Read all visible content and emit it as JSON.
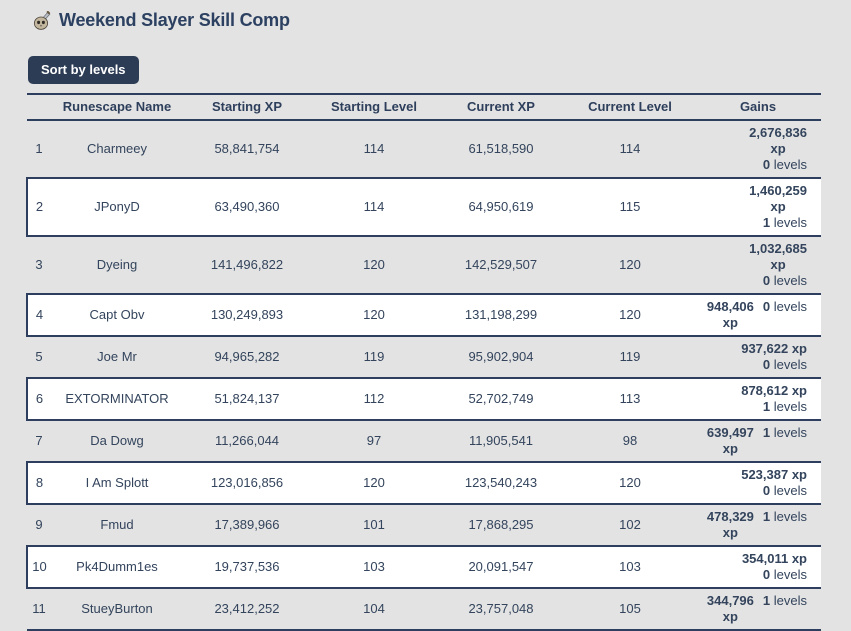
{
  "page": {
    "title": "Weekend Slayer Skill Comp",
    "icon": "slayer-skill-icon",
    "sort_button_label": "Sort by levels"
  },
  "colors": {
    "page_background": "#e3e3e3",
    "row_alt_background": "#ffffff",
    "text_navy": "#33445c",
    "border_navy": "#2d3e5f",
    "button_background": "#2d3c55",
    "button_text": "#ffffff"
  },
  "table": {
    "headers": {
      "rank": "",
      "name": "Runescape Name",
      "starting_xp": "Starting XP",
      "starting_level": "Starting Level",
      "current_xp": "Current XP",
      "current_level": "Current Level",
      "gains": "Gains"
    },
    "rows": [
      {
        "rank": "1",
        "name": "Charmeey",
        "starting_xp": "58,841,754",
        "starting_level": "114",
        "current_xp": "61,518,590",
        "current_level": "114",
        "gains_xp": "2,676,836\nxp",
        "gains_levels_value": "0",
        "gains_levels_unit": "levels"
      },
      {
        "rank": "2",
        "name": "JPonyD",
        "starting_xp": "63,490,360",
        "starting_level": "114",
        "current_xp": "64,950,619",
        "current_level": "115",
        "gains_xp": "1,460,259\nxp",
        "gains_levels_value": "1",
        "gains_levels_unit": "levels"
      },
      {
        "rank": "3",
        "name": "Dyeing",
        "starting_xp": "141,496,822",
        "starting_level": "120",
        "current_xp": "142,529,507",
        "current_level": "120",
        "gains_xp": "1,032,685\nxp",
        "gains_levels_value": "0",
        "gains_levels_unit": "levels"
      },
      {
        "rank": "4",
        "name": "Capt Obv",
        "starting_xp": "130,249,893",
        "starting_level": "120",
        "current_xp": "131,198,299",
        "current_level": "120",
        "gains_xp": "948,406\nxp",
        "gains_levels_value": "0",
        "gains_levels_unit": "levels"
      },
      {
        "rank": "5",
        "name": "Joe Mr",
        "starting_xp": "94,965,282",
        "starting_level": "119",
        "current_xp": "95,902,904",
        "current_level": "119",
        "gains_xp": "937,622 xp",
        "gains_levels_value": "0",
        "gains_levels_unit": "levels"
      },
      {
        "rank": "6",
        "name": "EXTORMINATOR",
        "starting_xp": "51,824,137",
        "starting_level": "112",
        "current_xp": "52,702,749",
        "current_level": "113",
        "gains_xp": "878,612 xp",
        "gains_levels_value": "1",
        "gains_levels_unit": "levels"
      },
      {
        "rank": "7",
        "name": "Da Dowg",
        "starting_xp": "11,266,044",
        "starting_level": "97",
        "current_xp": "11,905,541",
        "current_level": "98",
        "gains_xp": "639,497\nxp",
        "gains_levels_value": "1",
        "gains_levels_unit": "levels"
      },
      {
        "rank": "8",
        "name": "I Am Splott",
        "starting_xp": "123,016,856",
        "starting_level": "120",
        "current_xp": "123,540,243",
        "current_level": "120",
        "gains_xp": "523,387 xp",
        "gains_levels_value": "0",
        "gains_levels_unit": "levels"
      },
      {
        "rank": "9",
        "name": "Fmud",
        "starting_xp": "17,389,966",
        "starting_level": "101",
        "current_xp": "17,868,295",
        "current_level": "102",
        "gains_xp": "478,329\nxp",
        "gains_levels_value": "1",
        "gains_levels_unit": "levels"
      },
      {
        "rank": "10",
        "name": "Pk4Dumm1es",
        "starting_xp": "19,737,536",
        "starting_level": "103",
        "current_xp": "20,091,547",
        "current_level": "103",
        "gains_xp": "354,011 xp",
        "gains_levels_value": "0",
        "gains_levels_unit": "levels"
      },
      {
        "rank": "11",
        "name": "StueyBurton",
        "starting_xp": "23,412,252",
        "starting_level": "104",
        "current_xp": "23,757,048",
        "current_level": "105",
        "gains_xp": "344,796\nxp",
        "gains_levels_value": "1",
        "gains_levels_unit": "levels"
      }
    ]
  }
}
